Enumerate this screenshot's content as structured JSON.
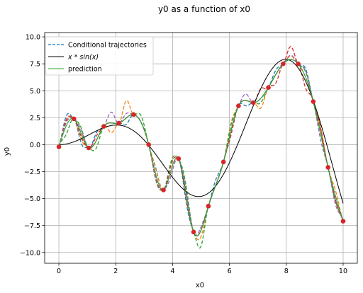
{
  "chart_data": {
    "type": "line",
    "title": "y0 as a function of x0",
    "xlabel": "x0",
    "ylabel": "y0",
    "xlim": [
      -0.5,
      10.5
    ],
    "ylim": [
      -11,
      10.4
    ],
    "xticks": [
      0,
      2,
      4,
      6,
      8,
      10
    ],
    "xtick_labels": [
      "0",
      "2",
      "4",
      "6",
      "8",
      "10"
    ],
    "yticks": [
      -10,
      -7.5,
      -5,
      -2.5,
      0,
      2.5,
      5,
      7.5,
      10
    ],
    "ytick_labels": [
      "−10.0",
      "−7.5",
      "−5.0",
      "−2.5",
      "0.0",
      "2.5",
      "5.0",
      "7.5",
      "10.0"
    ],
    "grid": true,
    "legend_position": "top-left",
    "legend": [
      {
        "label": "Conditional trajectories",
        "style": "dashed",
        "color": "#1f77b4"
      },
      {
        "label": "x * sin(x)",
        "style": "solid",
        "color": "#000000"
      },
      {
        "label": "prediction",
        "style": "solid",
        "color": "#2ca02c"
      }
    ],
    "observations": {
      "color": "#d62728",
      "x": [
        0,
        0.53,
        1.05,
        1.58,
        2.11,
        2.63,
        3.16,
        3.68,
        4.21,
        4.74,
        5.26,
        5.79,
        6.32,
        6.84,
        7.37,
        7.89,
        8.42,
        8.95,
        9.47,
        10.0
      ],
      "y": [
        -0.2,
        2.4,
        -0.3,
        1.7,
        2.0,
        2.8,
        0.0,
        -4.2,
        -1.3,
        -8.1,
        -5.7,
        -1.6,
        3.6,
        3.9,
        5.3,
        7.5,
        7.5,
        4.0,
        -2.1,
        -7.1
      ]
    },
    "true_function": {
      "name": "x * sin(x)",
      "color": "#000000"
    },
    "prediction": {
      "name": "prediction",
      "color": "#2ca02c"
    },
    "trajectories": [
      {
        "color": "#1f77b4",
        "offsets": [
          [
            0.28,
            0.9
          ],
          [
            0.8,
            -0.9
          ],
          [
            1.35,
            0.7
          ],
          [
            2.4,
            -0.6
          ],
          [
            3.45,
            0.6
          ],
          [
            4.5,
            -0.8
          ],
          [
            5.5,
            0.5
          ],
          [
            6.6,
            -0.5
          ],
          [
            7.6,
            0.4
          ],
          [
            8.7,
            0.8
          ],
          [
            9.7,
            -0.4
          ]
        ]
      },
      {
        "color": "#ff7f0e",
        "offsets": [
          [
            0.3,
            0.6
          ],
          [
            0.82,
            -0.5
          ],
          [
            1.8,
            -0.9
          ],
          [
            2.37,
            1.6
          ],
          [
            3.5,
            0.5
          ],
          [
            4.5,
            0.4
          ],
          [
            5.1,
            -0.6
          ],
          [
            6.1,
            0.7
          ],
          [
            7.1,
            -0.9
          ],
          [
            8.1,
            0.3
          ],
          [
            9.2,
            0.6
          ],
          [
            9.8,
            0.5
          ]
        ]
      },
      {
        "color": "#2ca02c",
        "offsets": [
          [
            0.3,
            -0.8
          ],
          [
            0.8,
            0.5
          ],
          [
            1.3,
            -0.7
          ],
          [
            2.85,
            0.6
          ],
          [
            3.4,
            -0.5
          ],
          [
            3.95,
            0.8
          ],
          [
            4.45,
            0.7
          ],
          [
            5.0,
            -1.5
          ],
          [
            6.1,
            0.5
          ],
          [
            7.1,
            -0.4
          ],
          [
            8.7,
            0.5
          ],
          [
            9.7,
            -0.5
          ]
        ]
      },
      {
        "color": "#d62728",
        "offsets": [
          [
            0.28,
            0.5
          ],
          [
            0.8,
            -0.3
          ],
          [
            1.3,
            0.4
          ],
          [
            3.4,
            -0.4
          ],
          [
            4.0,
            0.5
          ],
          [
            4.5,
            -0.4
          ],
          [
            6.1,
            -0.4
          ],
          [
            7.1,
            0.9
          ],
          [
            7.65,
            -0.8
          ],
          [
            8.15,
            1.2
          ],
          [
            8.7,
            -1.0
          ],
          [
            9.2,
            0.5
          ],
          [
            9.8,
            -0.4
          ]
        ]
      },
      {
        "color": "#9467bd",
        "offsets": [
          [
            0.28,
            0.3
          ],
          [
            0.8,
            0.3
          ],
          [
            1.85,
            1.0
          ],
          [
            2.4,
            0.4
          ],
          [
            3.4,
            -0.3
          ],
          [
            3.95,
            -0.5
          ],
          [
            4.45,
            0.4
          ],
          [
            5.0,
            0.3
          ],
          [
            6.6,
            0.6
          ],
          [
            8.1,
            0.4
          ],
          [
            8.7,
            0.6
          ],
          [
            9.2,
            -0.6
          ],
          [
            9.8,
            -0.8
          ]
        ]
      }
    ]
  }
}
